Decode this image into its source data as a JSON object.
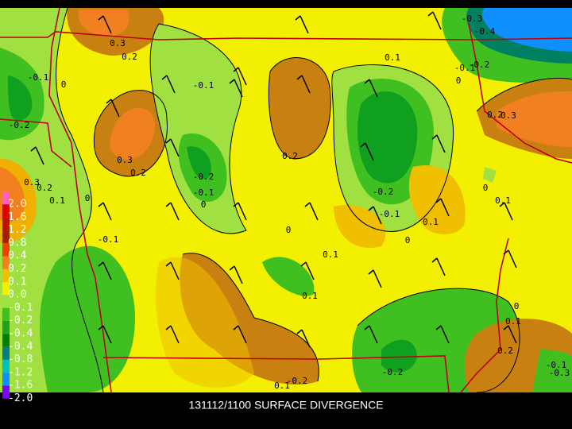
{
  "caption": "131112/1100 SURFACE DIVERGENCE",
  "color_bar": {
    "labels": [
      "2.0",
      "1.6",
      "1.2",
      "0.8",
      "0.4",
      "0.2",
      "0.1",
      "0.0",
      "-0.1",
      "-0.2",
      "-0.4",
      "-0.4",
      "-0.8",
      "-1.2",
      "-1.6",
      "-2.0"
    ]
  },
  "contour_labels": [
    "0.3",
    "0.2",
    "-0.1",
    "0",
    "-0.2",
    "0.3",
    "0.2",
    "-0.1",
    "0.2",
    "0.1",
    "-0.3",
    "-0.4",
    "-0.2",
    "-0.1",
    "0",
    "0.2",
    "0.3",
    "-0.2",
    "-0.1",
    "0",
    "-0.2",
    "-0.1",
    "0.1",
    "0",
    "0.1",
    "0",
    "0.3",
    "0.2",
    "0.1",
    "0",
    "-0.1",
    "0",
    "0.1",
    "0.1",
    "0",
    "0.1",
    "0.2",
    "-0.2",
    "-0.2",
    "0.1",
    "-0.1",
    "-0.3"
  ]
}
